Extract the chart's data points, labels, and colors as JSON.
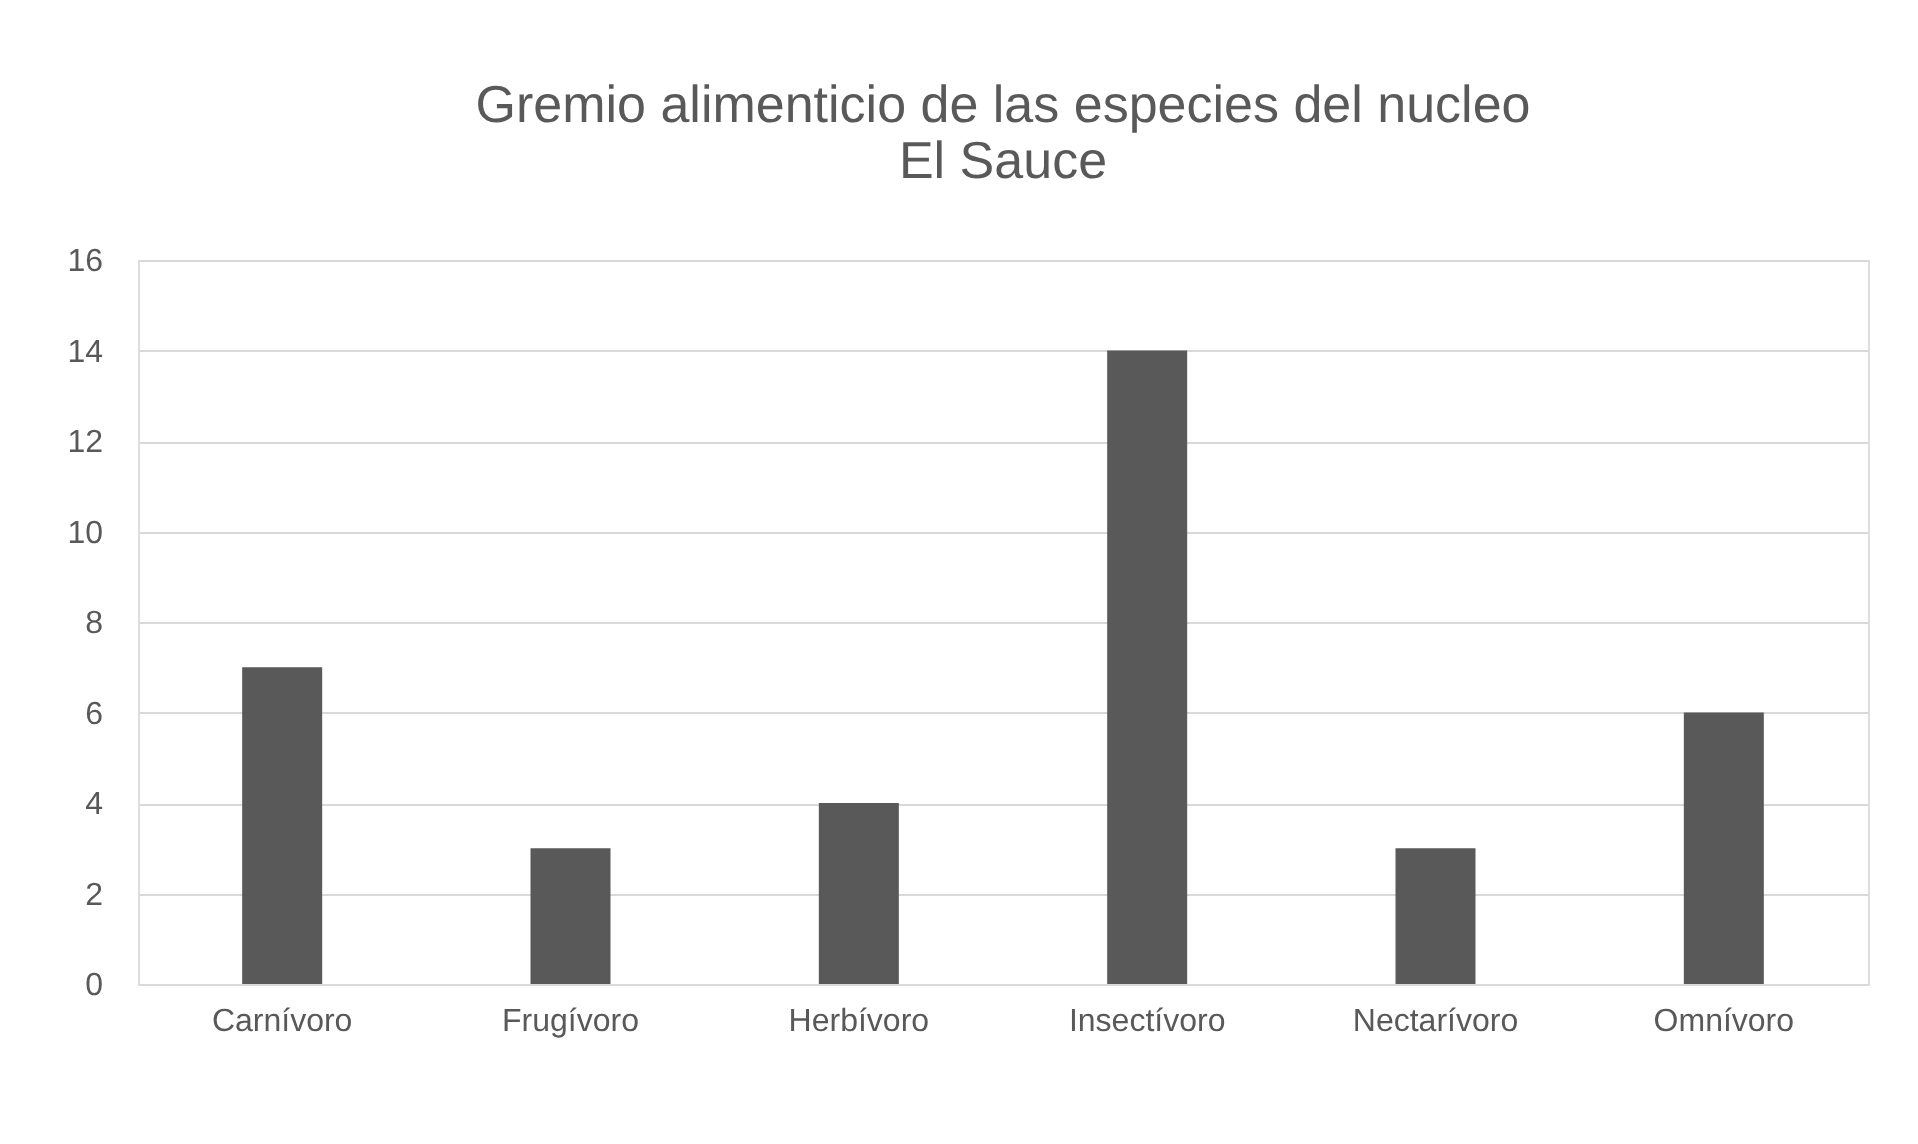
{
  "chart_data": {
    "type": "bar",
    "title": "Gremio alimenticio de las especies del nucleo\nEl Sauce",
    "categories": [
      "Carnívoro",
      "Frugívoro",
      "Herbívoro",
      "Insectívoro",
      "Nectarívoro",
      "Omnívoro"
    ],
    "values": [
      7,
      3,
      4,
      14,
      3,
      6
    ],
    "color": "#595959",
    "ylim": [
      0,
      16
    ],
    "yticks": [
      0,
      2,
      4,
      6,
      8,
      10,
      12,
      14,
      16
    ],
    "grid": "y"
  }
}
